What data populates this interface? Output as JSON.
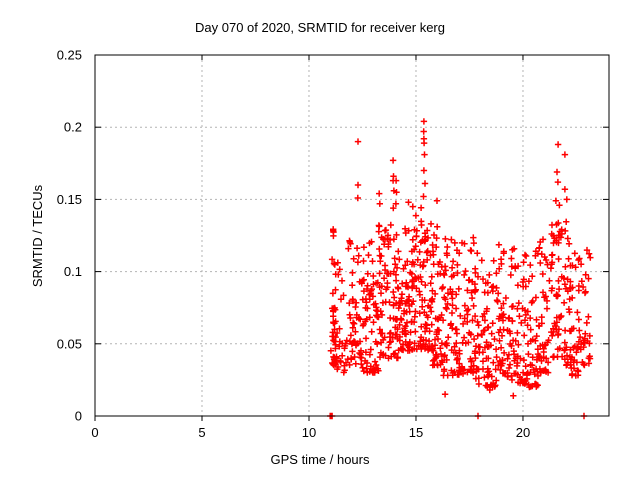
{
  "chart_data": {
    "type": "scatter",
    "title": "Day 070 of 2020, SRMTID for receiver kerg",
    "xlabel": "GPS time / hours",
    "ylabel": "SRMTID / TECUs",
    "xlim": [
      0,
      24.02
    ],
    "ylim": [
      0,
      0.25
    ],
    "xticks": [
      {
        "v": 0,
        "label": "0"
      },
      {
        "v": 5,
        "label": "5"
      },
      {
        "v": 10,
        "label": "10"
      },
      {
        "v": 15,
        "label": "15"
      },
      {
        "v": 20,
        "label": "20"
      }
    ],
    "yticks": [
      {
        "v": 0,
        "label": "0"
      },
      {
        "v": 0.05,
        "label": "0.05"
      },
      {
        "v": 0.1,
        "label": "0.1"
      },
      {
        "v": 0.15,
        "label": "0.15"
      },
      {
        "v": 0.2,
        "label": "0.2"
      },
      {
        "v": 0.25,
        "label": "0.25"
      }
    ],
    "grid": true,
    "legend": "none",
    "marker": "plus",
    "marker_color": "#ff0000",
    "grid_color": "#b4b4b4",
    "axis_color": "#000000",
    "background": "#ffffff",
    "seed": 20200070,
    "data_time_range_hours": [
      11.0,
      23.1
    ],
    "outlier_points": [
      [
        12.29,
        0.19
      ],
      [
        12.29,
        0.16
      ],
      [
        12.28,
        0.151
      ],
      [
        13.28,
        0.154
      ],
      [
        13.31,
        0.147
      ],
      [
        13.93,
        0.177
      ],
      [
        13.95,
        0.166
      ],
      [
        13.93,
        0.163
      ],
      [
        13.97,
        0.156
      ],
      [
        13.94,
        0.144
      ],
      [
        14.07,
        0.163
      ],
      [
        14.09,
        0.155
      ],
      [
        14.06,
        0.147
      ],
      [
        14.65,
        0.148
      ],
      [
        14.85,
        0.145
      ],
      [
        15.37,
        0.204
      ],
      [
        15.36,
        0.197
      ],
      [
        15.37,
        0.192
      ],
      [
        15.38,
        0.189
      ],
      [
        15.4,
        0.181
      ],
      [
        15.37,
        0.17
      ],
      [
        15.42,
        0.161
      ],
      [
        15.35,
        0.152
      ],
      [
        15.98,
        0.149
      ],
      [
        16.36,
        0.015
      ],
      [
        18.45,
        0.018
      ],
      [
        19.55,
        0.014
      ],
      [
        20.3,
        0.02
      ],
      [
        21.64,
        0.188
      ],
      [
        21.96,
        0.181
      ],
      [
        21.59,
        0.169
      ],
      [
        21.63,
        0.162
      ],
      [
        21.96,
        0.157
      ],
      [
        21.54,
        0.149
      ],
      [
        21.7,
        0.146
      ],
      [
        22.05,
        0.15
      ]
    ],
    "zero_points": [
      10.99,
      11.02,
      11.05,
      11.08,
      17.9,
      22.85
    ],
    "bands": [
      [
        11.02,
        11.25,
        40,
        0.035,
        0.13,
        1.5
      ],
      [
        11.25,
        11.75,
        26,
        0.03,
        0.11,
        1.6
      ],
      [
        11.75,
        12.25,
        38,
        0.035,
        0.125,
        1.6
      ],
      [
        12.25,
        12.75,
        40,
        0.03,
        0.12,
        1.6
      ],
      [
        12.75,
        13.25,
        42,
        0.03,
        0.125,
        1.6
      ],
      [
        13.25,
        13.75,
        46,
        0.04,
        0.135,
        1.6
      ],
      [
        13.75,
        14.25,
        50,
        0.04,
        0.14,
        1.6
      ],
      [
        14.25,
        14.75,
        48,
        0.045,
        0.14,
        1.5
      ],
      [
        14.75,
        15.25,
        50,
        0.045,
        0.145,
        1.5
      ],
      [
        15.25,
        15.75,
        52,
        0.045,
        0.14,
        1.5
      ],
      [
        15.75,
        16.25,
        48,
        0.035,
        0.135,
        1.6
      ],
      [
        16.25,
        16.75,
        44,
        0.028,
        0.125,
        1.6
      ],
      [
        16.75,
        17.25,
        40,
        0.028,
        0.12,
        1.6
      ],
      [
        17.25,
        17.75,
        40,
        0.03,
        0.125,
        1.6
      ],
      [
        17.75,
        18.25,
        40,
        0.022,
        0.115,
        1.7
      ],
      [
        18.25,
        18.75,
        40,
        0.02,
        0.115,
        1.7
      ],
      [
        18.75,
        19.25,
        40,
        0.028,
        0.12,
        1.6
      ],
      [
        19.25,
        19.75,
        40,
        0.025,
        0.118,
        1.6
      ],
      [
        19.75,
        20.25,
        40,
        0.022,
        0.112,
        1.7
      ],
      [
        20.25,
        20.75,
        40,
        0.02,
        0.115,
        1.7
      ],
      [
        20.75,
        21.25,
        42,
        0.03,
        0.125,
        1.6
      ],
      [
        21.25,
        21.75,
        46,
        0.04,
        0.14,
        1.5
      ],
      [
        21.75,
        22.25,
        44,
        0.035,
        0.14,
        1.5
      ],
      [
        22.25,
        22.75,
        36,
        0.028,
        0.125,
        1.6
      ],
      [
        22.75,
        23.15,
        26,
        0.035,
        0.118,
        1.6
      ]
    ]
  }
}
